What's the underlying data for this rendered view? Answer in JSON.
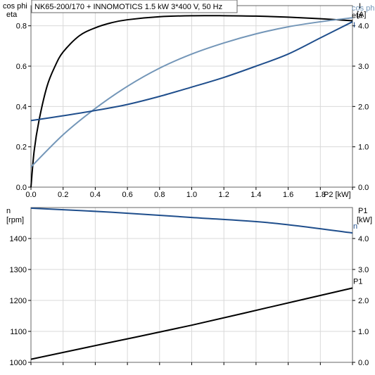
{
  "title": "NK65-200/170 + INNOMOTICS   1.5 kW   3*400 V, 50 Hz",
  "chart_data": [
    {
      "type": "line",
      "xlabel": "P2 [kW]",
      "xlim": [
        0,
        2.0
      ],
      "x_ticks": [
        "0.0",
        "0.2",
        "0.4",
        "0.6",
        "0.8",
        "1.0",
        "1.2",
        "1.4",
        "1.6",
        "1.8",
        "P2 [kW]"
      ],
      "ylabel_left": [
        "cos phi",
        "eta"
      ],
      "ylim_left": [
        0,
        0.9
      ],
      "y_ticks_left": [
        "0.0",
        "0.2",
        "0.4",
        "0.6",
        "0.8"
      ],
      "ylabel_right": [
        "I",
        "[A]"
      ],
      "ylim_right": [
        0,
        4.5
      ],
      "y_ticks_right": [
        "0.0",
        "1.0",
        "2.0",
        "3.0",
        "4.0"
      ],
      "grid": true,
      "series": [
        {
          "name": "eta",
          "axis": "left",
          "color": "#000000",
          "x": [
            0,
            0.02,
            0.05,
            0.1,
            0.15,
            0.2,
            0.3,
            0.4,
            0.5,
            0.6,
            0.8,
            1.0,
            1.2,
            1.4,
            1.6,
            1.8,
            2.0
          ],
          "y": [
            0.0,
            0.18,
            0.33,
            0.5,
            0.6,
            0.67,
            0.75,
            0.79,
            0.815,
            0.83,
            0.845,
            0.85,
            0.85,
            0.848,
            0.843,
            0.835,
            0.825
          ]
        },
        {
          "name": "cos phi",
          "axis": "left",
          "color": "#7396b8",
          "x": [
            0,
            0.2,
            0.4,
            0.6,
            0.8,
            1.0,
            1.2,
            1.4,
            1.6,
            1.8,
            2.0
          ],
          "y": [
            0.1,
            0.26,
            0.39,
            0.5,
            0.59,
            0.66,
            0.715,
            0.76,
            0.795,
            0.82,
            0.84
          ]
        },
        {
          "name": "I",
          "axis": "right",
          "color": "#1f4e8c",
          "x": [
            0,
            0.2,
            0.4,
            0.6,
            0.8,
            1.0,
            1.2,
            1.4,
            1.6,
            1.8,
            2.0
          ],
          "y": [
            1.65,
            1.77,
            1.9,
            2.05,
            2.25,
            2.48,
            2.72,
            3.0,
            3.3,
            3.7,
            4.1
          ]
        }
      ]
    },
    {
      "type": "line",
      "xlim": [
        0,
        2.0
      ],
      "ylabel_left": [
        "n",
        "[rpm]"
      ],
      "ylim_left": [
        1000,
        1500
      ],
      "y_ticks_left": [
        "1000",
        "1100",
        "1200",
        "1300",
        "1400"
      ],
      "ylabel_right": [
        "P1",
        "[kW]"
      ],
      "ylim_right": [
        0,
        5.0
      ],
      "y_ticks_right": [
        "0.0",
        "1.0",
        "2.0",
        "3.0",
        "4.0"
      ],
      "grid": true,
      "series": [
        {
          "name": "n",
          "axis": "left",
          "color": "#1f4e8c",
          "x": [
            0,
            0.5,
            1.0,
            1.5,
            2.0
          ],
          "y": [
            1498,
            1485,
            1468,
            1450,
            1418
          ]
        },
        {
          "name": "P1",
          "axis": "right",
          "color": "#000000",
          "x": [
            0,
            0.5,
            1.0,
            1.5,
            2.0
          ],
          "y": [
            0.1,
            0.65,
            1.2,
            1.8,
            2.4
          ]
        }
      ]
    }
  ]
}
